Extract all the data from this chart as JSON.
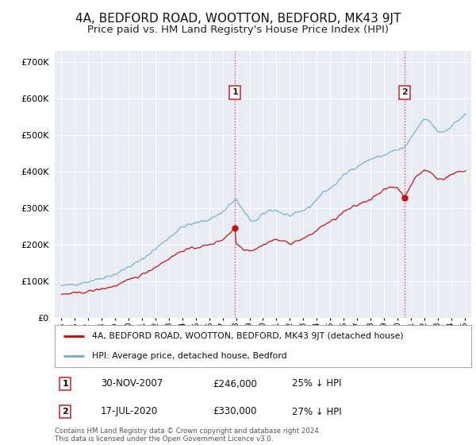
{
  "title": "4A, BEDFORD ROAD, WOOTTON, BEDFORD, MK43 9JT",
  "subtitle": "Price paid vs. HM Land Registry's House Price Index (HPI)",
  "title_fontsize": 11,
  "subtitle_fontsize": 9.5,
  "background_color": "#ffffff",
  "plot_bg_color": "#e8edf5",
  "grid_color": "#ffffff",
  "ytick_vals": [
    0,
    100000,
    200000,
    300000,
    400000,
    500000,
    600000,
    700000
  ],
  "ylim": [
    0,
    730000
  ],
  "xlim_start": 1994.5,
  "xlim_end": 2025.5,
  "purchase1_date": 2007.92,
  "purchase1_price": 246000,
  "purchase2_date": 2020.54,
  "purchase2_price": 330000,
  "hpi_line_color": "#7ab0d4",
  "price_line_color": "#cc1111",
  "dashed_line_color": "#cc3333",
  "legend_line1": "4A, BEDFORD ROAD, WOOTTON, BEDFORD, MK43 9JT (detached house)",
  "legend_line2": "HPI: Average price, detached house, Bedford",
  "ann1_num": "1",
  "ann1_date": "30-NOV-2007",
  "ann1_price": "£246,000",
  "ann1_pct": "25% ↓ HPI",
  "ann2_num": "2",
  "ann2_date": "17-JUL-2020",
  "ann2_price": "£330,000",
  "ann2_pct": "27% ↓ HPI",
  "footer": "Contains HM Land Registry data © Crown copyright and database right 2024.\nThis data is licensed under the Open Government Licence v3.0."
}
